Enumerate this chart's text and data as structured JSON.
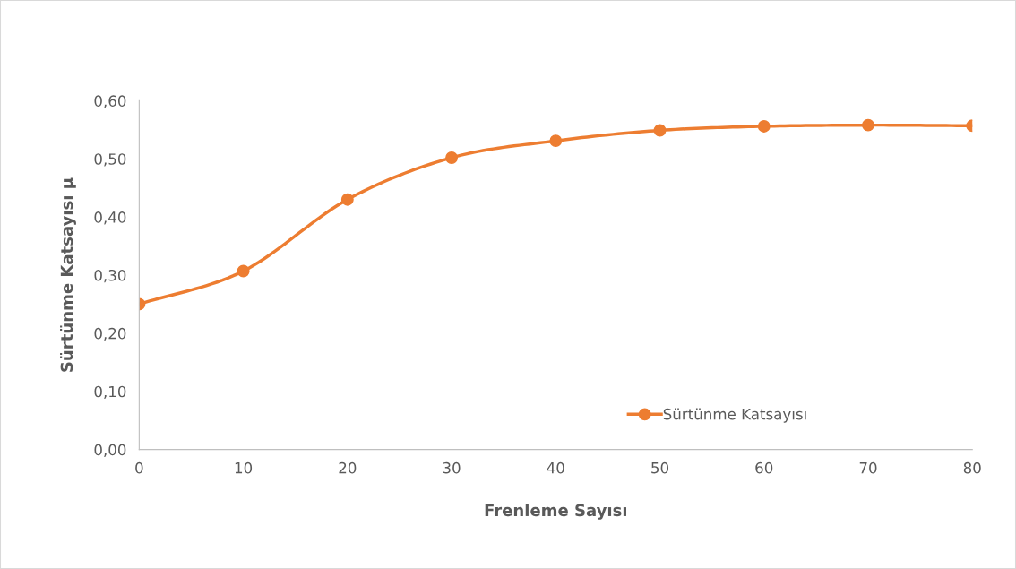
{
  "chart_data": {
    "type": "line",
    "xlabel": "Frenleme Sayısı",
    "ylabel": "Sürtünme Katsayısı µ",
    "x": [
      0,
      10,
      20,
      30,
      40,
      50,
      60,
      70,
      80
    ],
    "series": [
      {
        "name": "Sürtünme Katsayısı",
        "color": "#ed7d31",
        "values": [
          0.25,
          0.307,
          0.43,
          0.502,
          0.531,
          0.549,
          0.556,
          0.558,
          0.557
        ]
      }
    ],
    "xlim": [
      0,
      80
    ],
    "xticks": [
      0,
      10,
      20,
      30,
      40,
      50,
      60,
      70,
      80
    ],
    "ylim": [
      0,
      0.6
    ],
    "yticks": [
      {
        "value": 0,
        "label": "0,00"
      },
      {
        "value": 0.1,
        "label": "0,10"
      },
      {
        "value": 0.2,
        "label": "0,20"
      },
      {
        "value": 0.3,
        "label": "0,30"
      },
      {
        "value": 0.4,
        "label": "0,40"
      },
      {
        "value": 0.5,
        "label": "0,50"
      },
      {
        "value": 0.6,
        "label": "0,60"
      }
    ],
    "grid": false,
    "legend": "bottom right",
    "marker": "circle",
    "line_style": "solid"
  }
}
